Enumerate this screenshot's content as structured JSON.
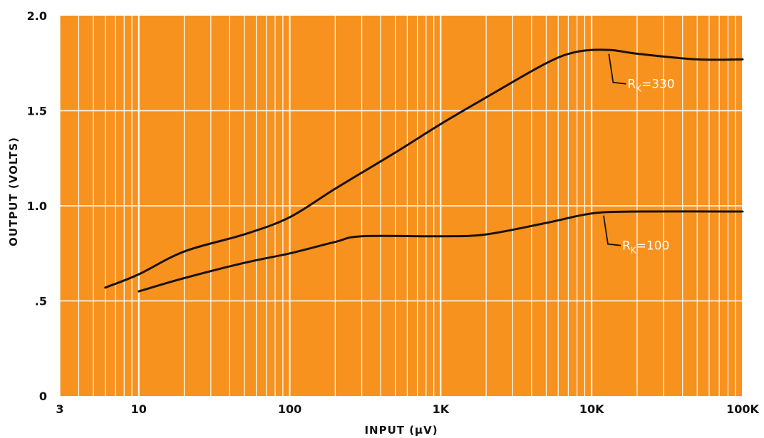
{
  "chart_data": {
    "type": "line",
    "xscale": "log",
    "xlim": [
      3,
      100000
    ],
    "ylim": [
      0,
      2.0
    ],
    "grid": true,
    "xlabel": "INPUT (µV)",
    "ylabel": "OUTPUT (VOLTS)",
    "x_tick_labels": [
      {
        "value": 3,
        "label": "3"
      },
      {
        "value": 10,
        "label": "10"
      },
      {
        "value": 100,
        "label": "100"
      },
      {
        "value": 1000,
        "label": "1K"
      },
      {
        "value": 10000,
        "label": "10K"
      },
      {
        "value": 100000,
        "label": "100K"
      }
    ],
    "y_tick_labels": [
      {
        "value": 0,
        "label": "0"
      },
      {
        "value": 0.5,
        "label": ".5"
      },
      {
        "value": 1.0,
        "label": "1.0"
      },
      {
        "value": 1.5,
        "label": "1.5"
      },
      {
        "value": 2.0,
        "label": "2.0"
      }
    ],
    "series": [
      {
        "name": "R_K=330",
        "points": [
          {
            "x": 6,
            "y": 0.57
          },
          {
            "x": 10,
            "y": 0.64
          },
          {
            "x": 20,
            "y": 0.76
          },
          {
            "x": 50,
            "y": 0.85
          },
          {
            "x": 100,
            "y": 0.94
          },
          {
            "x": 200,
            "y": 1.09
          },
          {
            "x": 500,
            "y": 1.28
          },
          {
            "x": 1000,
            "y": 1.43
          },
          {
            "x": 2000,
            "y": 1.57
          },
          {
            "x": 5000,
            "y": 1.75
          },
          {
            "x": 8000,
            "y": 1.81
          },
          {
            "x": 13000,
            "y": 1.82
          },
          {
            "x": 20000,
            "y": 1.8
          },
          {
            "x": 50000,
            "y": 1.77
          },
          {
            "x": 100000,
            "y": 1.77
          }
        ]
      },
      {
        "name": "R_K=100",
        "points": [
          {
            "x": 10,
            "y": 0.55
          },
          {
            "x": 20,
            "y": 0.62
          },
          {
            "x": 50,
            "y": 0.7
          },
          {
            "x": 100,
            "y": 0.75
          },
          {
            "x": 200,
            "y": 0.81
          },
          {
            "x": 300,
            "y": 0.84
          },
          {
            "x": 1000,
            "y": 0.84
          },
          {
            "x": 2000,
            "y": 0.85
          },
          {
            "x": 5000,
            "y": 0.91
          },
          {
            "x": 10000,
            "y": 0.96
          },
          {
            "x": 20000,
            "y": 0.97
          },
          {
            "x": 100000,
            "y": 0.97
          }
        ]
      }
    ],
    "annotations": [
      {
        "main": "R",
        "sub": "K",
        "rest": "=330",
        "target": {
          "x": 13000,
          "y": 1.81
        }
      },
      {
        "main": "R",
        "sub": "K",
        "rest": "=100",
        "target": {
          "x": 12000,
          "y": 0.96
        }
      }
    ],
    "colors": {
      "plot_background": "#f7921e",
      "grid": "#ffffff",
      "curve": "#1a1208",
      "text": "#111111",
      "annotation_text": "#ffffff"
    }
  }
}
